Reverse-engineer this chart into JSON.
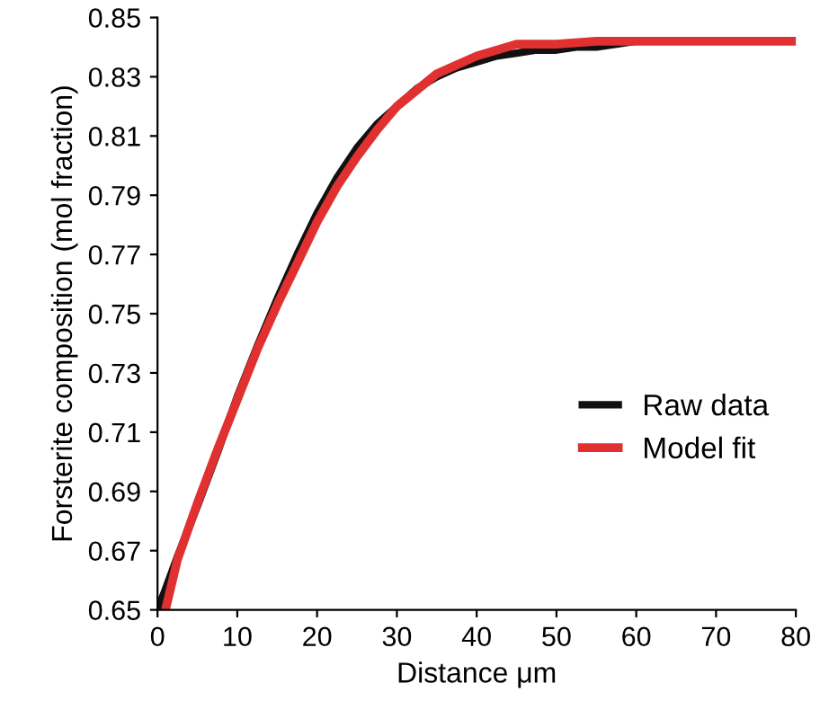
{
  "chart_data": {
    "type": "line",
    "xlabel": "Distance μm",
    "ylabel": "Forsterite composition (mol fraction)",
    "xlim": [
      0,
      80
    ],
    "xticks": [
      0,
      10,
      20,
      30,
      40,
      50,
      60,
      70,
      80
    ],
    "ylim": [
      0.65,
      0.85
    ],
    "yticks": [
      0.65,
      0.67,
      0.69,
      0.71,
      0.73,
      0.75,
      0.77,
      0.79,
      0.81,
      0.83,
      0.85
    ],
    "grid": false,
    "legend": "bottom right",
    "marker": "none",
    "line_style": "solid",
    "series": [
      {
        "name": "Raw data",
        "color": "#111111",
        "x": [
          0,
          1,
          2.5,
          5,
          7.5,
          10,
          12.5,
          15,
          17.5,
          20,
          22.5,
          25,
          27.5,
          30,
          32.5,
          35,
          37.5,
          40,
          42.5,
          45,
          47.5,
          50,
          52.5,
          55,
          57.5,
          60
        ],
        "values": [
          0.65,
          0.657,
          0.668,
          0.685,
          0.703,
          0.722,
          0.739,
          0.755,
          0.77,
          0.784,
          0.796,
          0.806,
          0.814,
          0.82,
          0.826,
          0.83,
          0.833,
          0.835,
          0.837,
          0.838,
          0.839,
          0.839,
          0.84,
          0.84,
          0.841,
          0.842
        ]
      },
      {
        "name": "Model fit",
        "color": "#e03030",
        "x": [
          1,
          2.5,
          5,
          7.5,
          10,
          12.5,
          15,
          17.5,
          20,
          22.5,
          25,
          27.5,
          30,
          35,
          40,
          45,
          50,
          55,
          60,
          70,
          80
        ],
        "values": [
          0.65,
          0.667,
          0.686,
          0.704,
          0.721,
          0.738,
          0.753,
          0.767,
          0.781,
          0.793,
          0.803,
          0.812,
          0.82,
          0.831,
          0.837,
          0.841,
          0.841,
          0.842,
          0.842,
          0.842,
          0.842
        ]
      }
    ]
  }
}
